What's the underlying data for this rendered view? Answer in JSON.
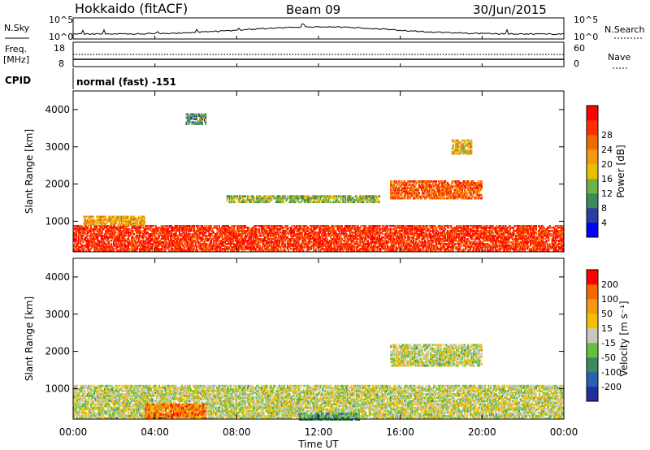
{
  "header": {
    "station": "Hokkaido (fitACF)",
    "beam": "Beam 09",
    "date": "30/Jun/2015"
  },
  "top_panel_labels": {
    "nsky": "N.Sky",
    "nsky_hi": "10^5",
    "nsky_lo": "10^0",
    "nsearch": "N.Search",
    "freq": "Freq.",
    "freq_unit": "[MHz]",
    "freq_hi": "18",
    "freq_lo": "8",
    "nave": "Nave",
    "nave_hi": "60",
    "nave_lo": "0",
    "cpid": "CPID",
    "mode": "normal (fast) -151"
  },
  "chart_data": [
    {
      "type": "heatmap",
      "title": "",
      "ylabel": "Slant Range [km]",
      "xlabel": "",
      "x_ticks": [
        "00:00",
        "04:00",
        "08:00",
        "12:00",
        "16:00",
        "20:00",
        "00:00"
      ],
      "y_ticks": [
        "1000",
        "2000",
        "3000",
        "4000"
      ],
      "ylim": [
        180,
        4500
      ],
      "xlim_hours": [
        0,
        24
      ],
      "colorbar": {
        "label": "Power [dB]",
        "ticks": [
          "4",
          "8",
          "12",
          "16",
          "20",
          "24",
          "28"
        ],
        "colors": [
          "#0000ff",
          "#2a3fa0",
          "#3c8a5a",
          "#6fb04a",
          "#e8c000",
          "#f59a10",
          "#f26a00",
          "#ff3000",
          "#ff0000"
        ]
      },
      "regions": [
        {
          "x0": 0.0,
          "x1": 24.0,
          "y0": 200,
          "y1": 900,
          "level": 0.85
        },
        {
          "x0": 0.5,
          "x1": 3.5,
          "y0": 900,
          "y1": 1150,
          "level": 0.6
        },
        {
          "x0": 15.5,
          "x1": 20.0,
          "y0": 1600,
          "y1": 2100,
          "level": 0.75
        },
        {
          "x0": 7.5,
          "x1": 15.0,
          "y0": 1500,
          "y1": 1700,
          "level": 0.4
        },
        {
          "x0": 18.5,
          "x1": 19.5,
          "y0": 2800,
          "y1": 3200,
          "level": 0.55
        },
        {
          "x0": 5.5,
          "x1": 6.5,
          "y0": 3600,
          "y1": 3900,
          "level": 0.3
        }
      ]
    },
    {
      "type": "heatmap",
      "title": "",
      "ylabel": "Slant Range [km]",
      "xlabel": "Time UT",
      "x_ticks": [
        "00:00",
        "04:00",
        "08:00",
        "12:00",
        "16:00",
        "20:00",
        "00:00"
      ],
      "y_ticks": [
        "1000",
        "2000",
        "3000",
        "4000"
      ],
      "ylim": [
        180,
        4500
      ],
      "xlim_hours": [
        0,
        24
      ],
      "colorbar": {
        "label": "Velocity [m s⁻¹]",
        "ticks": [
          "200",
          "100",
          "50",
          "15",
          "-15",
          "-50",
          "-100",
          "-200"
        ],
        "colors": [
          "#1f2fa0",
          "#2a5fb0",
          "#3a8a5a",
          "#66c040",
          "#c8c8c0",
          "#f5c000",
          "#f59a10",
          "#f26a00",
          "#ff0000"
        ]
      },
      "regions": [
        {
          "x0": 0.0,
          "x1": 24.0,
          "y0": 200,
          "y1": 1100,
          "level": 0.5
        },
        {
          "x0": 15.5,
          "x1": 20.0,
          "y0": 1600,
          "y1": 2200,
          "level": 0.5
        },
        {
          "x0": 3.5,
          "x1": 6.5,
          "y0": 200,
          "y1": 600,
          "level": 0.78
        },
        {
          "x0": 11.0,
          "x1": 14.0,
          "y0": 150,
          "y1": 350,
          "level": 0.3
        }
      ]
    }
  ]
}
